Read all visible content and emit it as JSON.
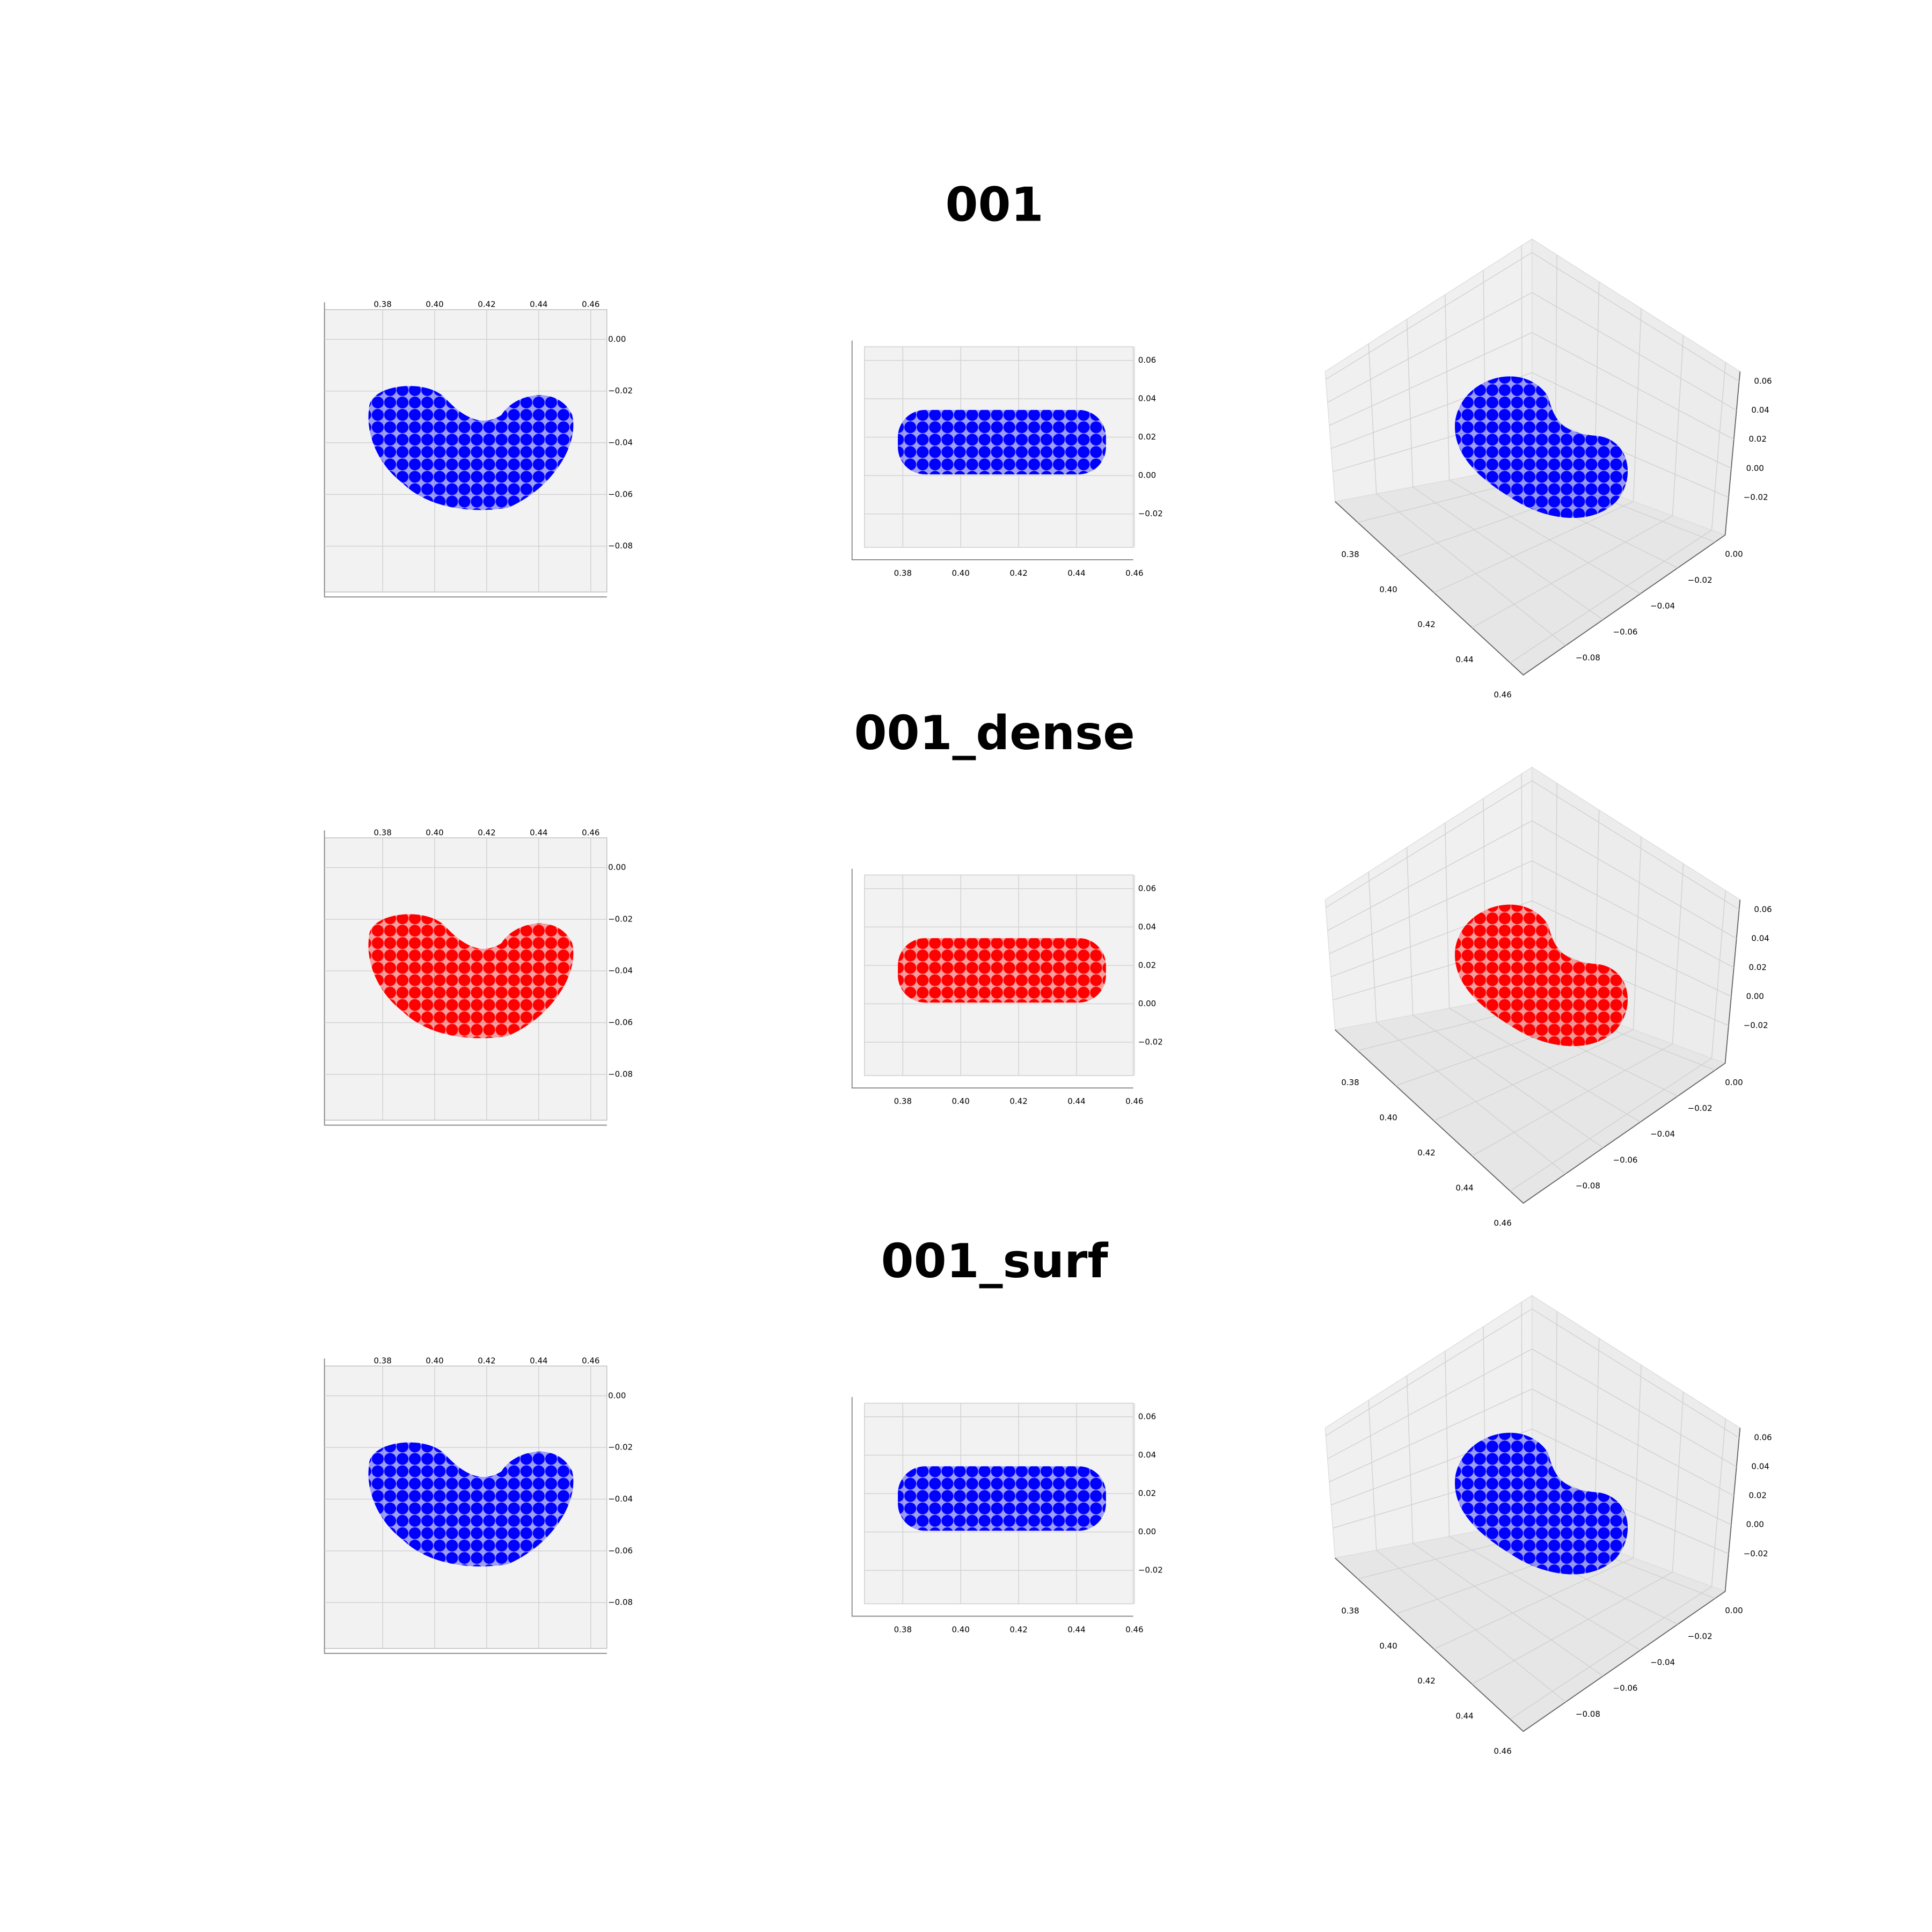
{
  "chart_data": [
    {
      "type": "scatter3d",
      "title": "001",
      "color": "#0000ff",
      "views": [
        {
          "xticks": [
            0.38,
            {
              "value": 0.4,
              "label": "0.40"
            },
            0.42,
            0.44,
            0.46
          ],
          "yticks": [
            {
              "value": 0,
              "label": "0.00"
            },
            {
              "value": -0.02,
              "label": "−0.02"
            },
            {
              "value": -0.04,
              "label": "−0.04"
            },
            {
              "value": -0.06,
              "label": "−0.06"
            },
            {
              "value": -0.08,
              "label": "−0.08"
            }
          ]
        },
        {
          "xticks": [
            0.38,
            {
              "value": 0.4,
              "label": "0.40"
            },
            0.42,
            0.44,
            0.46
          ],
          "zticks": [
            0.06,
            0.04,
            0.02,
            {
              "value": 0,
              "label": "0.00"
            },
            {
              "value": -0.02,
              "label": "−0.02"
            }
          ]
        },
        {
          "xticks": [
            0.38,
            {
              "value": 0.4,
              "label": "0.40"
            },
            0.42,
            0.44,
            0.46
          ],
          "yticks": [
            {
              "value": 0,
              "label": "0.00"
            },
            {
              "value": -0.02,
              "label": "−0.02"
            },
            {
              "value": -0.04,
              "label": "−0.04"
            },
            {
              "value": -0.06,
              "label": "−0.06"
            },
            {
              "value": -0.08,
              "label": "−0.08"
            }
          ],
          "zticks": [
            0.06,
            0.04,
            0.02,
            {
              "value": 0,
              "label": "0.00"
            },
            {
              "value": -0.02,
              "label": "−0.02"
            }
          ]
        }
      ]
    },
    {
      "type": "scatter3d",
      "title": "001_dense",
      "color": "#ff0000",
      "views": [
        {
          "xticks": [
            0.38,
            {
              "value": 0.4,
              "label": "0.40"
            },
            0.42,
            0.44,
            0.46
          ],
          "yticks": [
            {
              "value": 0,
              "label": "0.00"
            },
            {
              "value": -0.02,
              "label": "−0.02"
            },
            {
              "value": -0.04,
              "label": "−0.04"
            },
            {
              "value": -0.06,
              "label": "−0.06"
            },
            {
              "value": -0.08,
              "label": "−0.08"
            }
          ]
        },
        {
          "xticks": [
            0.38,
            {
              "value": 0.4,
              "label": "0.40"
            },
            0.42,
            0.44,
            0.46
          ],
          "zticks": [
            0.06,
            0.04,
            0.02,
            {
              "value": 0,
              "label": "0.00"
            },
            {
              "value": -0.02,
              "label": "−0.02"
            }
          ]
        },
        {
          "xticks": [
            0.38,
            {
              "value": 0.4,
              "label": "0.40"
            },
            0.42,
            0.44,
            0.46
          ],
          "yticks": [
            {
              "value": 0,
              "label": "0.00"
            },
            {
              "value": -0.02,
              "label": "−0.02"
            },
            {
              "value": -0.04,
              "label": "−0.04"
            },
            {
              "value": -0.06,
              "label": "−0.06"
            },
            {
              "value": -0.08,
              "label": "−0.08"
            }
          ],
          "zticks": [
            0.06,
            0.04,
            0.02,
            {
              "value": 0,
              "label": "0.00"
            },
            {
              "value": -0.02,
              "label": "−0.02"
            }
          ]
        }
      ]
    },
    {
      "type": "scatter3d",
      "title": "001_surf",
      "color": "#0000ff",
      "views": [
        {
          "xticks": [
            0.38,
            {
              "value": 0.4,
              "label": "0.40"
            },
            0.42,
            0.44,
            0.46
          ],
          "yticks": [
            {
              "value": 0,
              "label": "0.00"
            },
            {
              "value": -0.02,
              "label": "−0.02"
            },
            {
              "value": -0.04,
              "label": "−0.04"
            },
            {
              "value": -0.06,
              "label": "−0.06"
            },
            {
              "value": -0.08,
              "label": "−0.08"
            }
          ]
        },
        {
          "xticks": [
            0.38,
            {
              "value": 0.4,
              "label": "0.40"
            },
            0.42,
            0.44,
            0.46
          ],
          "zticks": [
            0.06,
            0.04,
            0.02,
            {
              "value": 0,
              "label": "0.00"
            },
            {
              "value": -0.02,
              "label": "−0.02"
            }
          ]
        },
        {
          "xticks": [
            0.38,
            {
              "value": 0.4,
              "label": "0.40"
            },
            0.42,
            0.44,
            0.46
          ],
          "yticks": [
            {
              "value": 0,
              "label": "0.00"
            },
            {
              "value": -0.02,
              "label": "−0.02"
            },
            {
              "value": -0.04,
              "label": "−0.04"
            },
            {
              "value": -0.06,
              "label": "−0.06"
            },
            {
              "value": -0.08,
              "label": "−0.08"
            }
          ],
          "zticks": [
            0.06,
            0.04,
            0.02,
            {
              "value": 0,
              "label": "0.00"
            },
            {
              "value": -0.02,
              "label": "−0.02"
            }
          ]
        }
      ]
    }
  ]
}
